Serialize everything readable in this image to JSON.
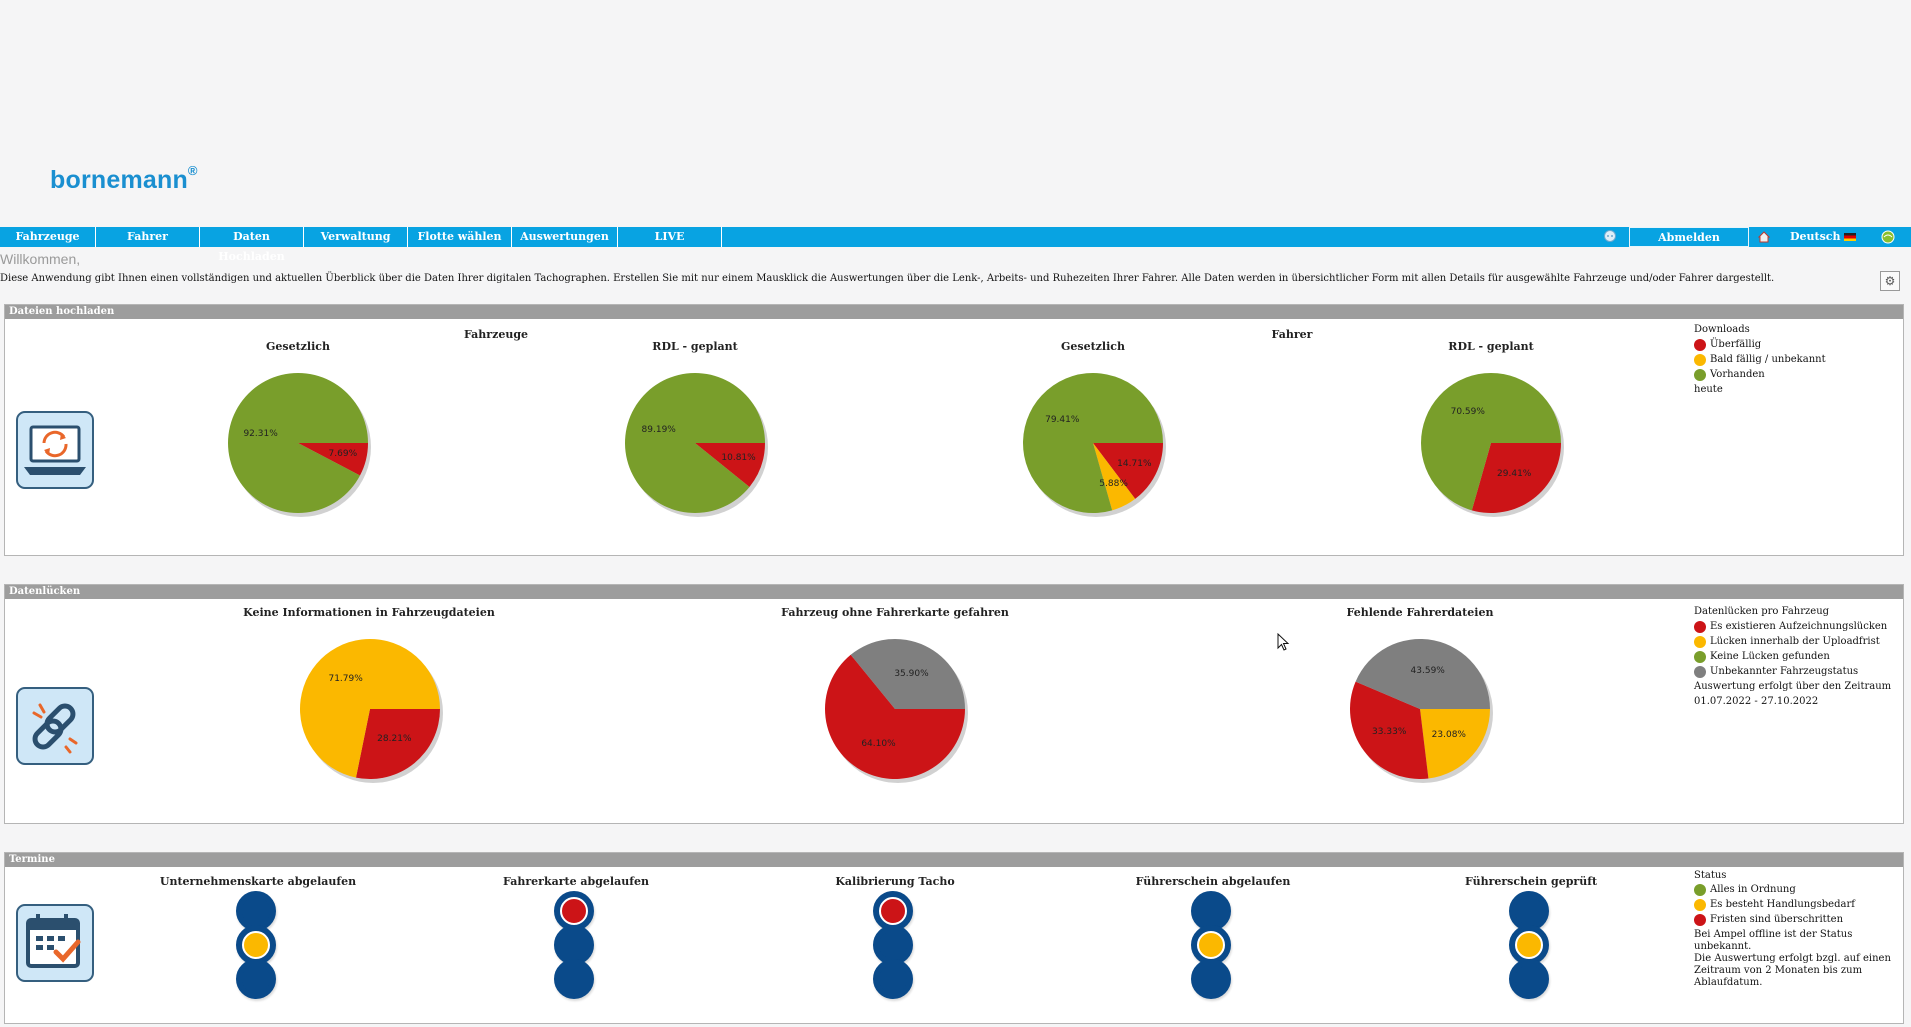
{
  "logo": {
    "text": "bornemann",
    "mark": "®"
  },
  "nav": {
    "items": [
      "Fahrzeuge",
      "Fahrer",
      "Daten Hochladen",
      "Verwaltung",
      "Flotte wählen",
      "Auswertungen",
      "LIVE"
    ],
    "logout": "Abmelden",
    "language": "Deutsch",
    "icons": [
      "help-icon",
      "home-icon",
      "german-flag-icon",
      "status-globe-icon"
    ]
  },
  "welcome": "Willkommen,",
  "intro": "Diese Anwendung gibt Ihnen einen vollständigen und aktuellen Überblick über die Daten Ihrer digitalen Tachographen. Erstellen Sie mit nur einem Mausklick die Auswertungen über die Lenk-, Arbeits- und Ruhezeiten Ihrer Fahrer. Alle Daten werden in übersichtlicher Form mit allen Details für ausgewählte Fahrzeuge und/oder Fahrer dargestellt.",
  "colors": {
    "red": "#cc1417",
    "yellow": "#fbb800",
    "green": "#799e2b",
    "gray": "#7f7f7f",
    "navy": "#0a4a8a",
    "nav": "#08a3e2"
  },
  "sections": {
    "uploads": {
      "header": "Dateien hochladen",
      "group_vehicles": "Fahrzeuge",
      "group_drivers": "Fahrer",
      "legend": {
        "title": "Downloads",
        "items": [
          {
            "label": "Überfällig",
            "color": "#cc1417"
          },
          {
            "label": "Bald fällig / unbekannt",
            "color": "#fbb800"
          },
          {
            "label": "Vorhanden",
            "color": "#799e2b"
          }
        ],
        "note": "heute"
      }
    },
    "gaps": {
      "header": "Datenlücken",
      "legend": {
        "title": "Datenlücken pro Fahrzeug",
        "items": [
          {
            "label": "Es existieren Aufzeichnungslücken",
            "color": "#cc1417"
          },
          {
            "label": "Lücken innerhalb der Uploadfrist",
            "color": "#fbb800"
          },
          {
            "label": "Keine Lücken gefunden",
            "color": "#799e2b"
          },
          {
            "label": "Unbekannter Fahrzeugstatus",
            "color": "#7f7f7f"
          }
        ],
        "note1": "Auswertung erfolgt über den Zeitraum",
        "note2": "01.07.2022 - 27.10.2022"
      }
    },
    "deadlines": {
      "header": "Termine",
      "legend": {
        "title": "Status",
        "items": [
          {
            "label": "Alles in Ordnung",
            "color": "#799e2b"
          },
          {
            "label": "Es besteht Handlungsbedarf",
            "color": "#fbb800"
          },
          {
            "label": "Fristen sind überschritten",
            "color": "#cc1417"
          }
        ],
        "notes": [
          "Bei Ampel offline ist der Status",
          "unbekannt.",
          "Die Auswertung erfolgt bzgl. auf einen",
          "Zeitraum von 2 Monaten bis zum",
          "Ablaufdatum."
        ]
      },
      "lights": [
        {
          "title": "Unternehmenskarte abgelaufen",
          "active": "yellow"
        },
        {
          "title": "Fahrerkarte abgelaufen",
          "active": "red"
        },
        {
          "title": "Kalibrierung Tacho",
          "active": "red"
        },
        {
          "title": "Führerschein abgelaufen",
          "active": "yellow"
        },
        {
          "title": "Führerschein geprüft",
          "active": "yellow"
        }
      ]
    }
  },
  "chart_data": [
    {
      "type": "pie",
      "title": "Gesetzlich",
      "group": "Fahrzeuge",
      "slices": [
        {
          "label": "7.69%",
          "value": 7.69,
          "color": "#cc1417"
        },
        {
          "label": "92.31%",
          "value": 92.31,
          "color": "#799e2b"
        }
      ]
    },
    {
      "type": "pie",
      "title": "RDL - geplant",
      "group": "Fahrzeuge",
      "slices": [
        {
          "label": "10.81%",
          "value": 10.81,
          "color": "#cc1417"
        },
        {
          "label": "89.19%",
          "value": 89.19,
          "color": "#799e2b"
        }
      ]
    },
    {
      "type": "pie",
      "title": "Gesetzlich",
      "group": "Fahrer",
      "slices": [
        {
          "label": "14.71%",
          "value": 14.71,
          "color": "#cc1417"
        },
        {
          "label": "5.88%",
          "value": 5.88,
          "color": "#fbb800"
        },
        {
          "label": "79.41%",
          "value": 79.41,
          "color": "#799e2b"
        }
      ]
    },
    {
      "type": "pie",
      "title": "RDL - geplant",
      "group": "Fahrer",
      "slices": [
        {
          "label": "29.41%",
          "value": 29.41,
          "color": "#cc1417"
        },
        {
          "label": "70.59%",
          "value": 70.59,
          "color": "#799e2b"
        }
      ]
    },
    {
      "type": "pie",
      "title": "Keine Informationen in Fahrzeugdateien",
      "slices": [
        {
          "label": "28.21%",
          "value": 28.21,
          "color": "#cc1417"
        },
        {
          "label": "71.79%",
          "value": 71.79,
          "color": "#fbb800"
        }
      ]
    },
    {
      "type": "pie",
      "title": "Fahrzeug ohne Fahrerkarte gefahren",
      "slices": [
        {
          "label": "64.10%",
          "value": 64.1,
          "color": "#cc1417"
        },
        {
          "label": "35.90%",
          "value": 35.9,
          "color": "#7f7f7f"
        }
      ]
    },
    {
      "type": "pie",
      "title": "Fehlende Fahrerdateien",
      "slices": [
        {
          "label": "23.08%",
          "value": 23.08,
          "color": "#fbb800"
        },
        {
          "label": "33.33%",
          "value": 33.33,
          "color": "#cc1417"
        },
        {
          "label": "43.59%",
          "value": 43.59,
          "color": "#7f7f7f"
        }
      ]
    }
  ]
}
